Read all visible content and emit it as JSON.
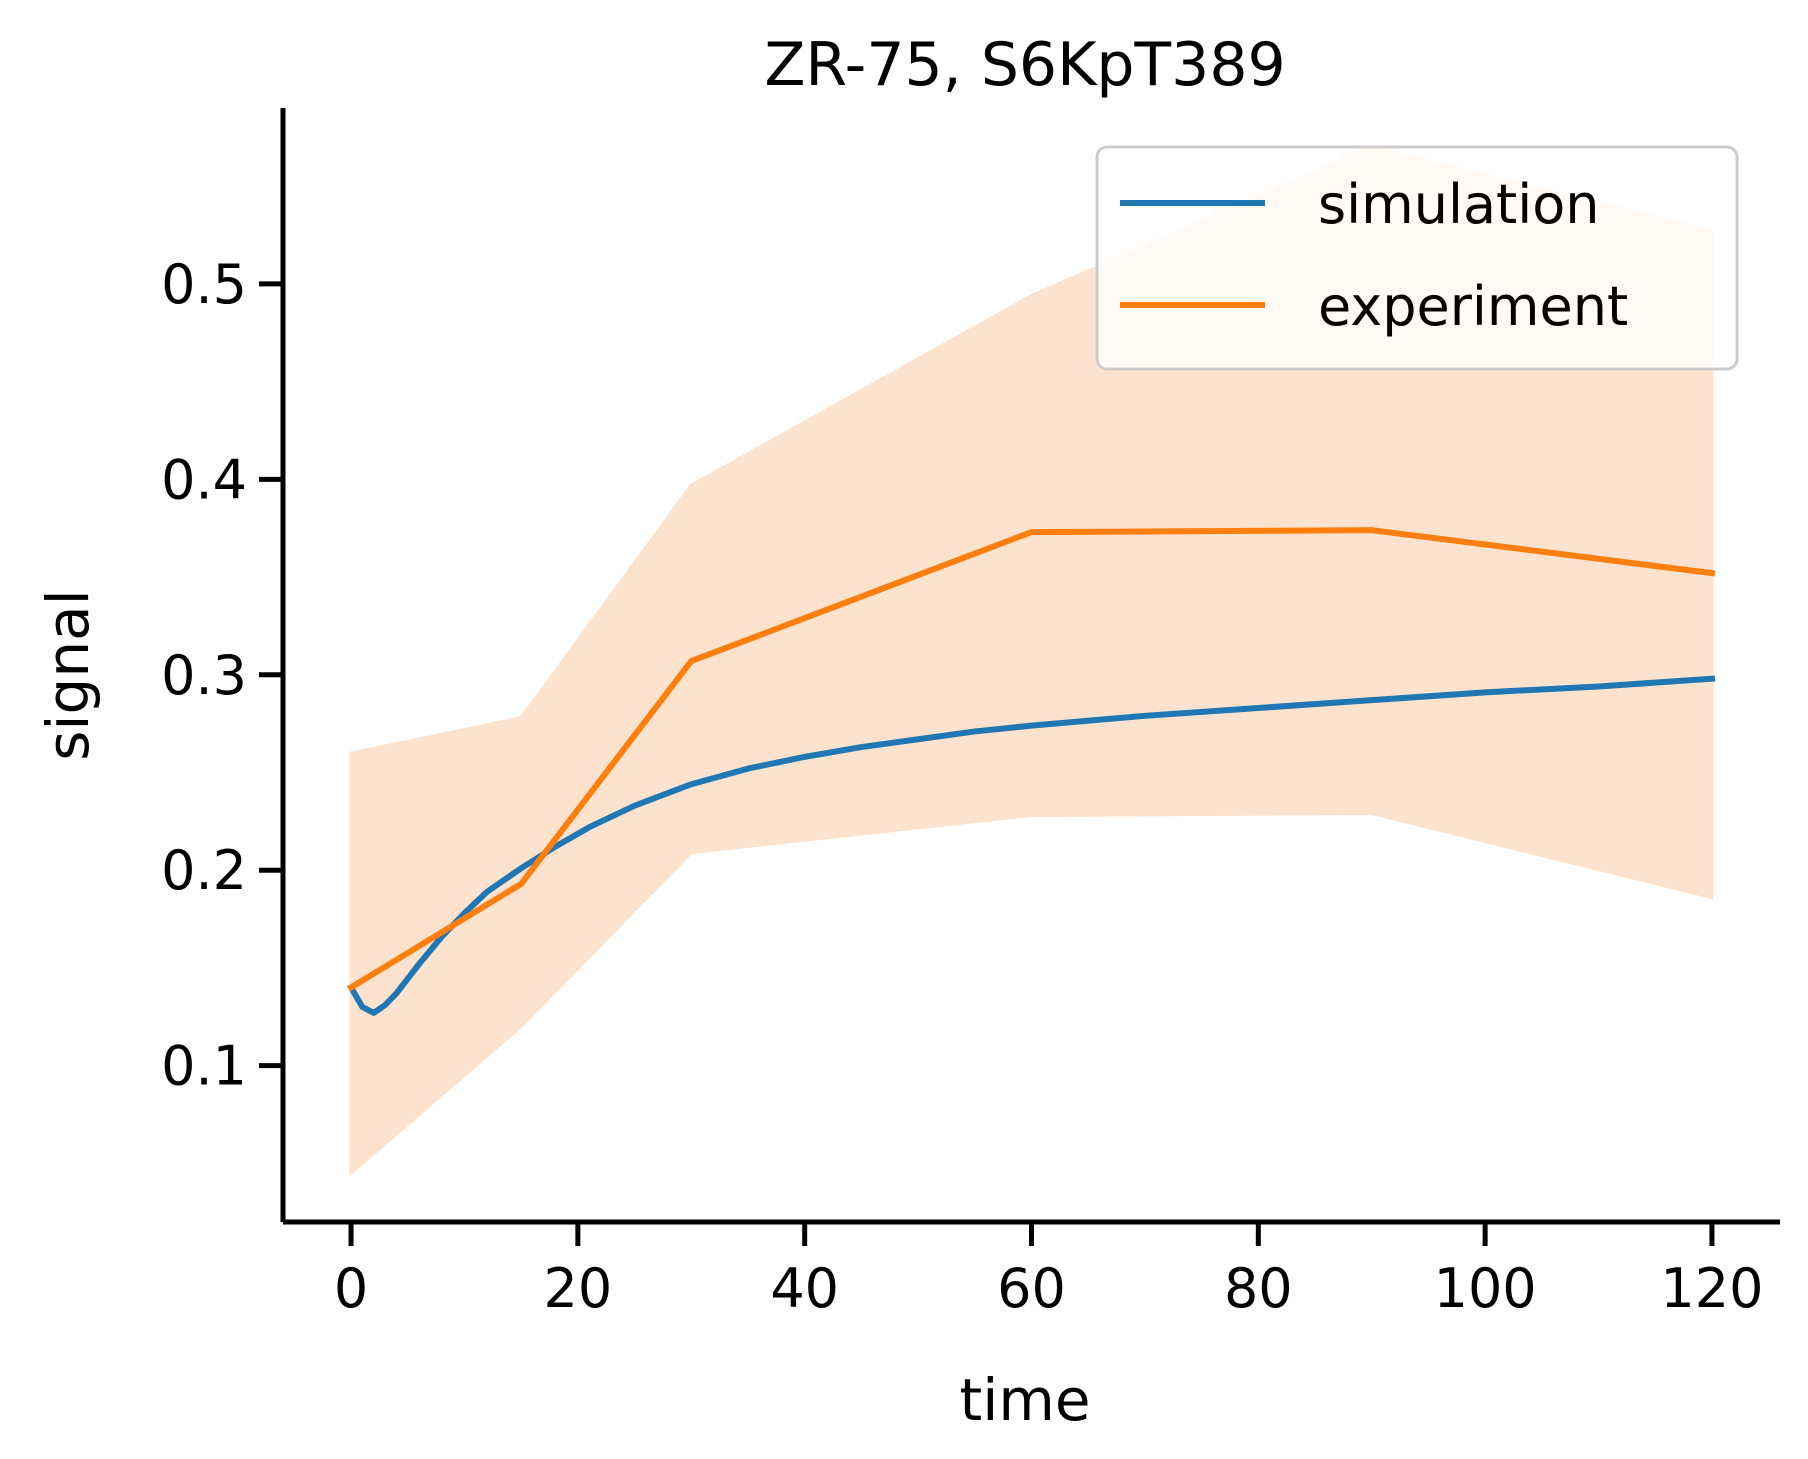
{
  "chart_data": {
    "type": "line",
    "title": "ZR-75, S6KpT389",
    "xlabel": "time",
    "ylabel": "signal",
    "xlim": [
      -6,
      126
    ],
    "ylim": [
      0.02,
      0.59
    ],
    "xticks": [
      0,
      20,
      40,
      60,
      80,
      100,
      120
    ],
    "xtick_labels": [
      "0",
      "20",
      "40",
      "60",
      "80",
      "100",
      "120"
    ],
    "yticks": [
      0.1,
      0.2,
      0.3,
      0.4,
      0.5
    ],
    "ytick_labels": [
      "0.1",
      "0.2",
      "0.3",
      "0.4",
      "0.5"
    ],
    "grid": false,
    "legend_position": "top-right",
    "series": [
      {
        "name": "simulation",
        "color": "#1f77b4",
        "x": [
          0,
          1,
          2,
          3,
          4,
          6,
          8,
          10,
          12,
          15,
          18,
          21,
          25,
          30,
          35,
          40,
          45,
          50,
          55,
          60,
          70,
          80,
          90,
          100,
          110,
          120
        ],
        "y": [
          0.14,
          0.13,
          0.127,
          0.131,
          0.137,
          0.152,
          0.166,
          0.178,
          0.189,
          0.201,
          0.212,
          0.222,
          0.233,
          0.244,
          0.252,
          0.258,
          0.263,
          0.267,
          0.271,
          0.274,
          0.279,
          0.283,
          0.287,
          0.291,
          0.294,
          0.298
        ]
      },
      {
        "name": "experiment",
        "color": "#ff7f0e",
        "x": [
          0,
          15,
          30,
          60,
          90,
          120
        ],
        "y": [
          0.14,
          0.193,
          0.307,
          0.373,
          0.374,
          0.352
        ],
        "band_upper": [
          0.26,
          0.278,
          0.397,
          0.494,
          0.57,
          0.527
        ],
        "band_lower": [
          0.045,
          0.12,
          0.209,
          0.228,
          0.229,
          0.186
        ],
        "band_color": "#fde3cd"
      }
    ]
  }
}
